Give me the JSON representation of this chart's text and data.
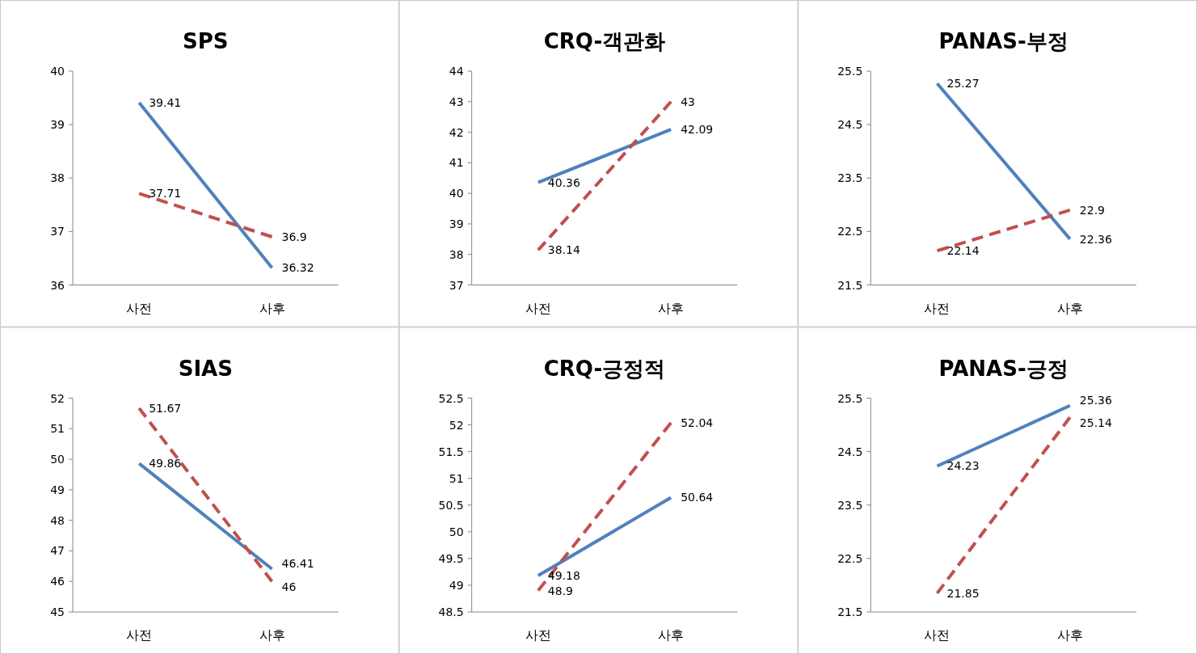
{
  "chart_data": [
    {
      "type": "line",
      "title": "SPS",
      "categories": [
        "사전",
        "사후"
      ],
      "ylim": [
        36,
        40
      ],
      "yticks": [
        36,
        37,
        38,
        39,
        40
      ],
      "data_labels": true,
      "grid": false,
      "series": [
        {
          "color": "#4f81bd",
          "line_style": "solid",
          "values": [
            39.41,
            36.32
          ]
        },
        {
          "color": "#c0504d",
          "line_style": "dashed",
          "values": [
            37.71,
            36.9
          ]
        }
      ]
    },
    {
      "type": "line",
      "title": "CRQ-객관화",
      "categories": [
        "사전",
        "사후"
      ],
      "ylim": [
        37,
        44
      ],
      "yticks": [
        37,
        38,
        39,
        40,
        41,
        42,
        43,
        44
      ],
      "data_labels": true,
      "grid": false,
      "series": [
        {
          "color": "#4f81bd",
          "line_style": "solid",
          "values": [
            40.36,
            42.09
          ]
        },
        {
          "color": "#c0504d",
          "line_style": "dashed",
          "values": [
            38.14,
            43
          ]
        }
      ]
    },
    {
      "type": "line",
      "title": "PANAS-부정",
      "categories": [
        "사전",
        "사후"
      ],
      "ylim": [
        21.5,
        25.5
      ],
      "yticks": [
        21.5,
        22.5,
        23.5,
        24.5,
        25.5
      ],
      "data_labels": true,
      "grid": false,
      "series": [
        {
          "color": "#4f81bd",
          "line_style": "solid",
          "values": [
            25.27,
            22.36
          ]
        },
        {
          "color": "#c0504d",
          "line_style": "dashed",
          "values": [
            22.14,
            22.9
          ]
        }
      ]
    },
    {
      "type": "line",
      "title": "SIAS",
      "categories": [
        "사전",
        "사후"
      ],
      "ylim": [
        45,
        52
      ],
      "yticks": [
        45,
        46,
        47,
        48,
        49,
        50,
        51,
        52
      ],
      "data_labels": true,
      "grid": false,
      "series": [
        {
          "color": "#4f81bd",
          "line_style": "solid",
          "values": [
            49.86,
            46.41
          ]
        },
        {
          "color": "#c0504d",
          "line_style": "dashed",
          "values": [
            51.67,
            46
          ]
        }
      ]
    },
    {
      "type": "line",
      "title": "CRQ-긍정적",
      "categories": [
        "사전",
        "사후"
      ],
      "ylim": [
        48.5,
        52.5
      ],
      "yticks": [
        48.5,
        49,
        49.5,
        50,
        50.5,
        51,
        51.5,
        52,
        52.5
      ],
      "data_labels": true,
      "grid": false,
      "series": [
        {
          "color": "#4f81bd",
          "line_style": "solid",
          "values": [
            49.18,
            50.64
          ]
        },
        {
          "color": "#c0504d",
          "line_style": "dashed",
          "values": [
            48.9,
            52.04
          ]
        }
      ]
    },
    {
      "type": "line",
      "title": "PANAS-긍정",
      "categories": [
        "사전",
        "사후"
      ],
      "ylim": [
        21.5,
        25.5
      ],
      "yticks": [
        21.5,
        22.5,
        23.5,
        24.5,
        25.5
      ],
      "data_labels": true,
      "grid": false,
      "series": [
        {
          "color": "#4f81bd",
          "line_style": "solid",
          "values": [
            24.23,
            25.36
          ]
        },
        {
          "color": "#c0504d",
          "line_style": "dashed",
          "values": [
            21.85,
            25.14
          ]
        }
      ]
    }
  ]
}
